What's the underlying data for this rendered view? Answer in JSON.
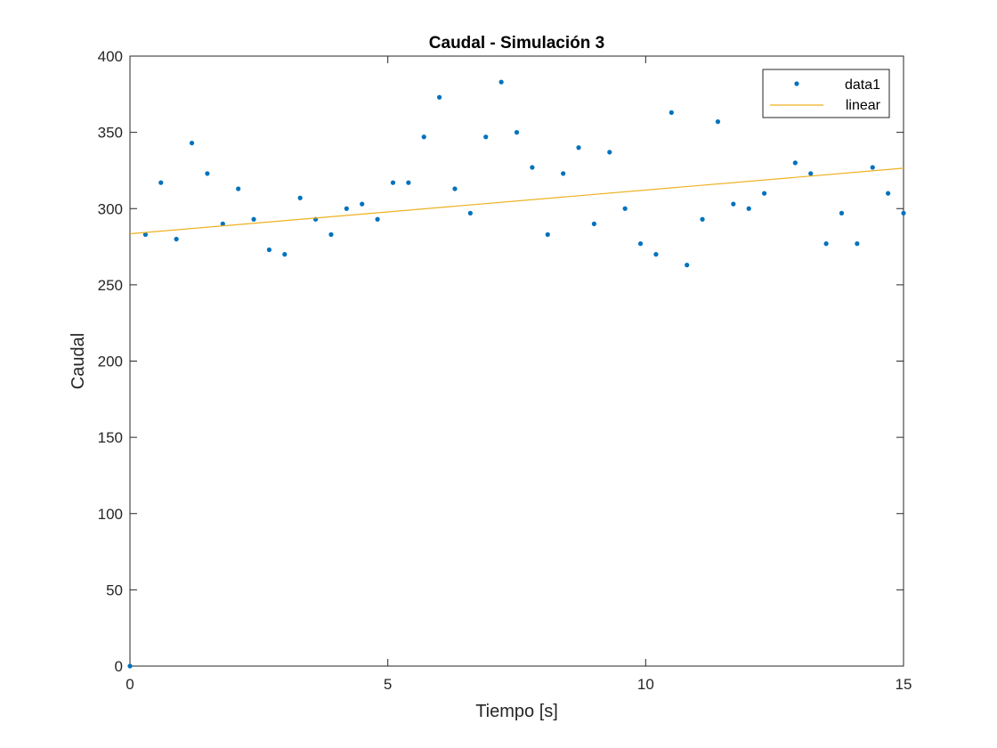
{
  "chart_data": {
    "type": "scatter",
    "title": "Caudal - Simulación 3",
    "xlabel": "Tiempo [s]",
    "ylabel": "Caudal",
    "xlim": [
      0,
      15
    ],
    "ylim": [
      0,
      400
    ],
    "xticks": [
      0,
      5,
      10,
      15
    ],
    "yticks": [
      0,
      50,
      100,
      150,
      200,
      250,
      300,
      350,
      400
    ],
    "grid": false,
    "legend_position": "top-right",
    "series": [
      {
        "name": "data1",
        "kind": "scatter",
        "color": "#0072BD",
        "x": [
          0,
          0.3,
          0.6,
          0.9,
          1.2,
          1.5,
          1.8,
          2.1,
          2.4,
          2.7,
          3.0,
          3.3,
          3.6,
          3.9,
          4.2,
          4.5,
          4.8,
          5.1,
          5.4,
          5.7,
          6.0,
          6.3,
          6.6,
          6.9,
          7.2,
          7.5,
          7.8,
          8.1,
          8.4,
          8.7,
          9.0,
          9.3,
          9.6,
          9.9,
          10.2,
          10.5,
          10.8,
          11.1,
          11.4,
          11.7,
          12.0,
          12.3,
          12.9,
          13.2,
          13.5,
          13.8,
          14.1,
          14.4,
          14.7,
          15.0
        ],
        "y": [
          0,
          283,
          317,
          280,
          343,
          323,
          290,
          313,
          293,
          273,
          270,
          307,
          293,
          283,
          300,
          303,
          293,
          317,
          317,
          347,
          373,
          313,
          297,
          347,
          383,
          350,
          327,
          283,
          323,
          340,
          290,
          337,
          300,
          277,
          270,
          363,
          263,
          293,
          357,
          303,
          300,
          310,
          330,
          323,
          277,
          297,
          277,
          327,
          310,
          297
        ]
      },
      {
        "name": "linear",
        "kind": "line",
        "color": "#EDB120",
        "x": [
          0,
          15
        ],
        "y": [
          283.5,
          326.5
        ]
      }
    ]
  }
}
